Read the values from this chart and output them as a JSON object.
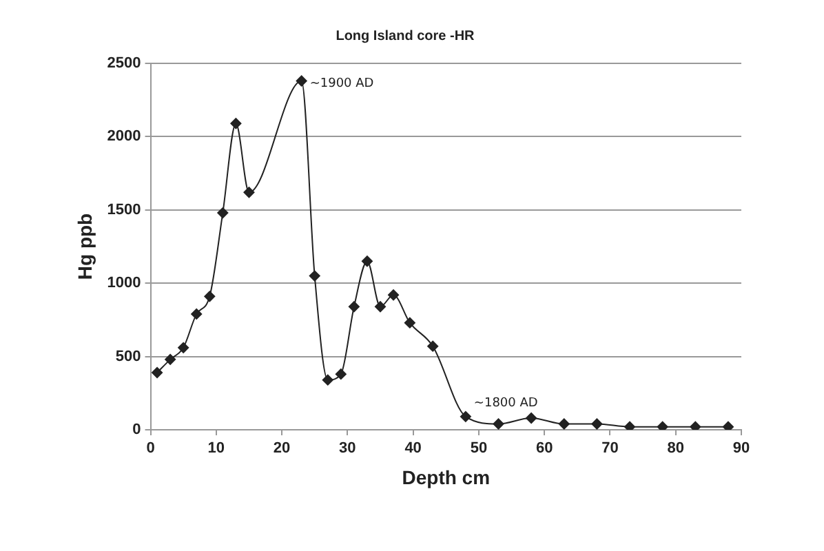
{
  "chart_data": {
    "type": "line",
    "title": "Long Island core -HR",
    "xlabel": "Depth cm",
    "ylabel": "Hg ppb",
    "x": [
      1,
      3,
      5,
      7,
      9,
      11,
      13,
      15,
      23,
      25,
      27,
      29,
      31,
      33,
      35,
      37,
      39.5,
      43,
      48,
      53,
      58,
      63,
      68,
      73,
      78,
      83,
      88
    ],
    "series": [
      {
        "color": "#222222",
        "values": [
          390,
          480,
          560,
          790,
          910,
          1480,
          2090,
          1620,
          2380,
          1050,
          340,
          380,
          840,
          1150,
          840,
          920,
          730,
          570,
          90,
          40,
          80,
          40,
          40,
          20,
          20,
          20,
          20
        ]
      }
    ],
    "xlim": [
      0,
      90
    ],
    "xticks": [
      0,
      10,
      20,
      30,
      40,
      50,
      60,
      70,
      80,
      90
    ],
    "ylim": [
      0,
      2500
    ],
    "yticks": [
      0,
      500,
      1000,
      1500,
      2000,
      2500
    ],
    "grid": "y",
    "legend": false,
    "marker": "diamond",
    "line_style": "solid",
    "annotations": [
      {
        "text": "~1900 AD",
        "x": 23,
        "y": 2380
      },
      {
        "text": "~1800 AD",
        "x": 48,
        "y": 90
      }
    ]
  }
}
